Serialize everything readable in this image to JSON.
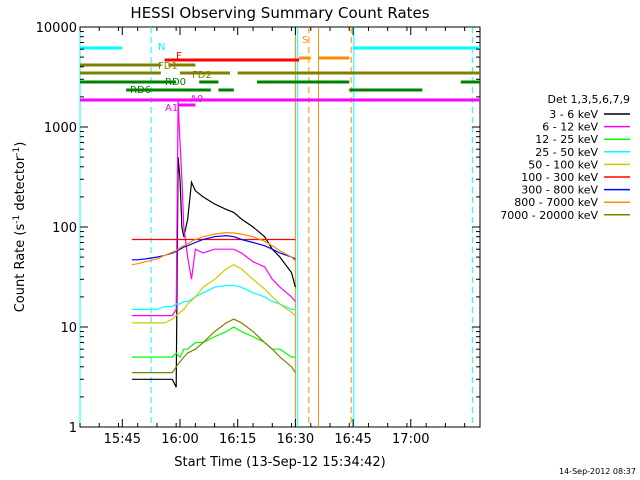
{
  "chart_data": {
    "type": "line",
    "title": "HESSI Observing Summary Count Rates",
    "xlabel": "Start Time (13-Sep-12 15:34:42)",
    "ylabel": "Count Rate (s⁻¹ detector⁻¹)",
    "ylabel_parts": {
      "main": "Count Rate (s",
      "exp1": "-1",
      "mid": " detector",
      "exp2": "-1",
      "end": ")"
    },
    "yscale": "log",
    "ylim": [
      1,
      10000
    ],
    "xlim_minutes_after_1534": [
      0,
      104
    ],
    "xticks": [
      {
        "label": "15:45",
        "t": 11
      },
      {
        "label": "16:00",
        "t": 26
      },
      {
        "label": "16:15",
        "t": 41
      },
      {
        "label": "16:30",
        "t": 56
      },
      {
        "label": "16:45",
        "t": 71
      },
      {
        "label": "17:00",
        "t": 86
      }
    ],
    "yticks": [
      {
        "label": "1",
        "v": 1
      },
      {
        "label": "10",
        "v": 10
      },
      {
        "label": "100",
        "v": 100
      },
      {
        "label": "1000",
        "v": 1000
      },
      {
        "label": "10000",
        "v": 10000
      }
    ],
    "legend_title": "Det 1,3,5,6,7,9",
    "legend_placement": "right",
    "series": [
      {
        "name": "3 - 6 keV",
        "color": "#000000",
        "x": [
          13.5,
          15,
          17,
          19.5,
          20,
          21,
          22,
          23,
          24,
          25,
          25.5,
          26,
          26.5,
          27,
          28,
          29,
          30,
          32,
          35,
          38,
          40,
          42,
          45,
          48,
          50,
          52,
          55,
          56
        ],
        "y": [
          3,
          3,
          3,
          3,
          3,
          3,
          3,
          3,
          3,
          2.5,
          500,
          300,
          100,
          80,
          120,
          280,
          230,
          200,
          170,
          150,
          140,
          120,
          100,
          80,
          60,
          50,
          35,
          25
        ]
      },
      {
        "name": "6 - 12 keV",
        "color": "#ff00ff",
        "x": [
          13.5,
          15,
          17,
          20,
          22,
          24,
          25,
          25.5,
          26,
          26.5,
          27,
          28,
          29,
          30,
          32,
          35,
          38,
          40,
          42,
          45,
          48,
          50,
          52,
          55,
          56
        ],
        "y": [
          13,
          13,
          13,
          13,
          13,
          13,
          15,
          1800,
          700,
          300,
          100,
          50,
          30,
          60,
          55,
          60,
          60,
          60,
          55,
          45,
          40,
          30,
          25,
          20,
          18
        ]
      },
      {
        "name": "12 - 25 keV",
        "color": "#00ff00",
        "x": [
          13.5,
          15,
          17,
          20,
          22,
          24,
          25,
          26,
          27,
          28,
          30,
          32,
          35,
          38,
          40,
          42,
          45,
          48,
          50,
          52,
          55,
          56
        ],
        "y": [
          5,
          5,
          5,
          5,
          5,
          5,
          5.5,
          5,
          6,
          6,
          7,
          7,
          8,
          9,
          10,
          9,
          8,
          7,
          6,
          6,
          5,
          5
        ]
      },
      {
        "name": "25 - 50 keV",
        "color": "#00ffff",
        "x": [
          13.5,
          15,
          17,
          20,
          22,
          24,
          25,
          26,
          27,
          28,
          30,
          32,
          35,
          38,
          40,
          42,
          45,
          48,
          50,
          52,
          55,
          56
        ],
        "y": [
          15,
          15,
          15,
          15,
          16,
          16,
          17,
          17,
          18,
          18,
          20,
          22,
          25,
          26,
          26,
          25,
          22,
          20,
          18,
          17,
          15,
          15
        ]
      },
      {
        "name": "50 - 100 keV",
        "color": "#cccc00",
        "x": [
          13.5,
          15,
          17,
          20,
          22,
          24,
          25,
          26,
          27,
          28,
          30,
          32,
          35,
          38,
          40,
          42,
          45,
          48,
          50,
          52,
          55,
          56
        ],
        "y": [
          11,
          11,
          11,
          11,
          11,
          12,
          13,
          14,
          15,
          17,
          20,
          25,
          30,
          38,
          42,
          38,
          30,
          24,
          20,
          17,
          14,
          13
        ]
      },
      {
        "name": "100 - 300 keV",
        "color": "#ff0000",
        "x": [
          13.5,
          15,
          17,
          20,
          22,
          24,
          25,
          26,
          27,
          28,
          30,
          32,
          35,
          38,
          40,
          42,
          45,
          48,
          50,
          52,
          55,
          56
        ],
        "y": [
          75,
          75,
          75,
          75,
          75,
          75,
          75,
          75,
          75,
          75,
          75,
          75,
          75,
          75,
          75,
          75,
          75,
          75,
          75,
          75,
          75,
          75
        ]
      },
      {
        "name": "300 - 800 keV",
        "color": "#0000ff",
        "x": [
          13.5,
          15,
          17,
          20,
          22,
          24,
          25,
          26,
          27,
          28,
          30,
          32,
          35,
          38,
          40,
          42,
          45,
          48,
          50,
          52,
          55,
          56
        ],
        "y": [
          47,
          47,
          48,
          50,
          52,
          55,
          57,
          60,
          63,
          65,
          70,
          75,
          80,
          82,
          80,
          75,
          70,
          65,
          60,
          55,
          50,
          48
        ]
      },
      {
        "name": "800 - 7000 keV",
        "color": "#ff8c00",
        "x": [
          13.5,
          15,
          17,
          20,
          22,
          24,
          25,
          26,
          27,
          28,
          30,
          32,
          35,
          38,
          40,
          42,
          45,
          48,
          50,
          52,
          55,
          56
        ],
        "y": [
          42,
          43,
          45,
          48,
          52,
          56,
          58,
          62,
          65,
          68,
          75,
          80,
          85,
          88,
          87,
          85,
          80,
          72,
          65,
          58,
          50,
          46
        ]
      },
      {
        "name": "7000 - 20000 keV",
        "color": "#808000",
        "x": [
          13.5,
          15,
          17,
          20,
          22,
          24,
          25,
          26,
          27,
          28,
          30,
          32,
          35,
          38,
          40,
          42,
          45,
          48,
          50,
          52,
          55,
          56
        ],
        "y": [
          3.5,
          3.5,
          3.5,
          3.5,
          3.5,
          3.5,
          4,
          4.5,
          5,
          5.5,
          6,
          7,
          9,
          11,
          12,
          11,
          9,
          7,
          6,
          5,
          4,
          3.5
        ]
      }
    ],
    "flag_bars": [
      {
        "label": "N",
        "color": "#00ffff",
        "segments": [
          [
            0,
            11
          ],
          [
            71,
            104
          ]
        ]
      },
      {
        "label": "S",
        "color": "#ff8c00",
        "segments": [
          [
            57,
            60
          ],
          [
            62,
            70
          ]
        ]
      },
      {
        "label": "F",
        "color": "#ff0000",
        "segments": [
          [
            22,
            57
          ]
        ]
      },
      {
        "label": "FD1",
        "color": "#808000",
        "segments": [
          [
            0,
            21
          ],
          [
            23,
            30
          ]
        ]
      },
      {
        "label": "FD2",
        "color": "#808000",
        "segments": [
          [
            0,
            21
          ],
          [
            26,
            39
          ],
          [
            41,
            104
          ]
        ]
      },
      {
        "label": "RD0",
        "color": "#008000",
        "segments": [
          [
            0,
            25
          ],
          [
            31,
            36
          ],
          [
            46,
            70
          ],
          [
            99,
            104
          ]
        ]
      },
      {
        "label": "RD6",
        "color": "#008000",
        "segments": [
          [
            12,
            34
          ],
          [
            36,
            40
          ],
          [
            70,
            89
          ]
        ]
      },
      {
        "label": "A1",
        "color": "#ff00ff",
        "segments": [
          [
            0,
            104
          ]
        ]
      },
      {
        "label": "A0",
        "color": "#ff00ff",
        "segments": [
          [
            25.5,
            30
          ]
        ]
      }
    ],
    "vlines": [
      {
        "t": 0,
        "color": "#00ffff",
        "style": "solid"
      },
      {
        "t": 18.5,
        "color": "#00ffff",
        "style": "dashed"
      },
      {
        "t": 56,
        "color": "#ff8c00",
        "style": "solid"
      },
      {
        "t": 56.6,
        "color": "#00ffff",
        "style": "solid"
      },
      {
        "t": 59.5,
        "color": "#ff8c00",
        "style": "dashed"
      },
      {
        "t": 62,
        "color": "#ff8c00",
        "style": "solid"
      },
      {
        "t": 70.5,
        "color": "#ff8c00",
        "style": "dashed"
      },
      {
        "t": 71.2,
        "color": "#00ffff",
        "style": "solid"
      },
      {
        "t": 102,
        "color": "#00ffff",
        "style": "dashed"
      }
    ],
    "footer_timestamp": "14-Sep-2012 08:37"
  }
}
